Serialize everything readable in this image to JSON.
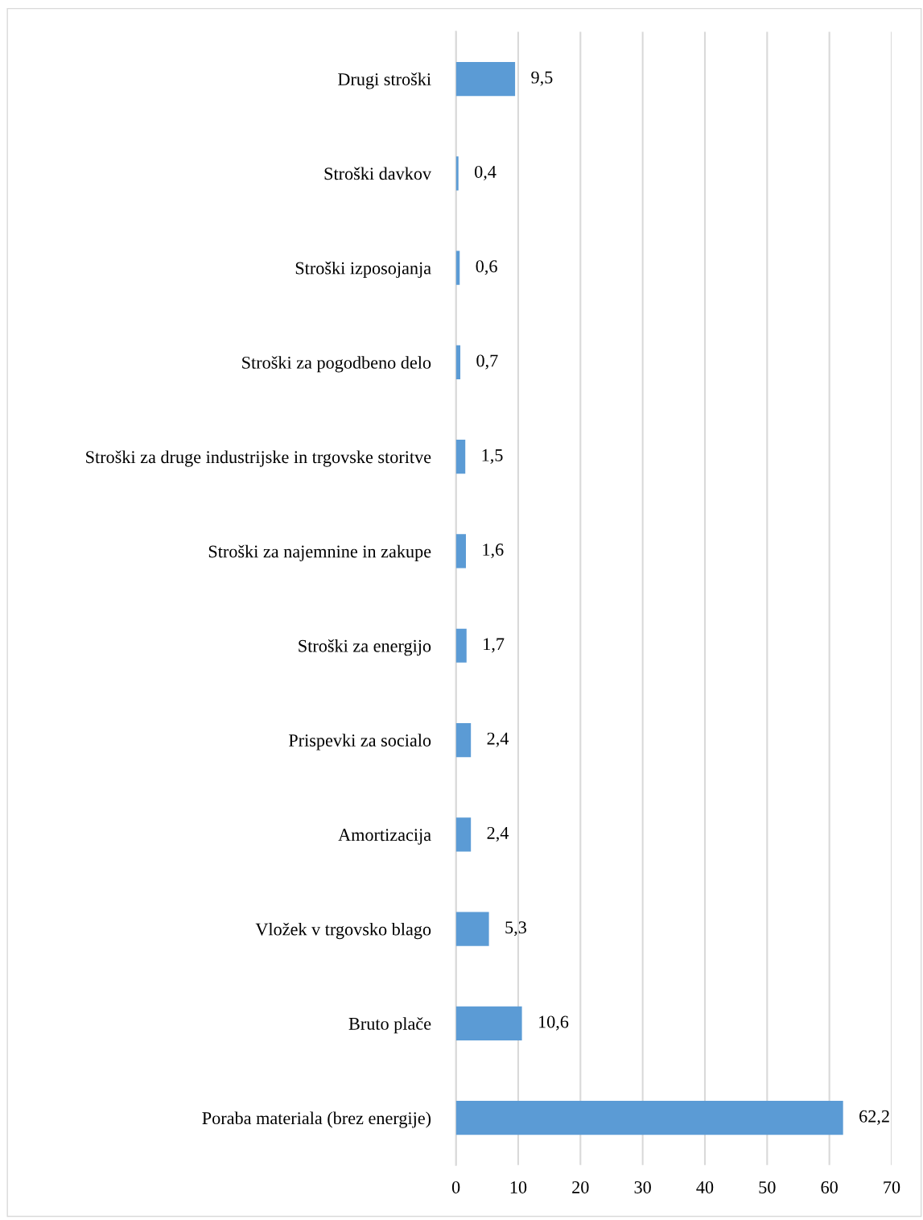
{
  "chart_data": {
    "type": "bar",
    "orientation": "horizontal",
    "categories": [
      "Drugi stroški",
      "Stroški davkov",
      "Stroški izposojanja",
      "Stroški za pogodbeno delo",
      "Stroški za druge industrijske in trgovske storitve",
      "Stroški za najemnine in zakupe",
      "Stroški za energijo",
      "Prispevki za socialo",
      "Amortizacija",
      "Vložek v trgovsko blago",
      "Bruto plače",
      "Poraba materiala (brez energije)"
    ],
    "values": [
      9.5,
      0.4,
      0.6,
      0.7,
      1.5,
      1.6,
      1.7,
      2.4,
      2.4,
      5.3,
      10.6,
      62.2
    ],
    "value_labels": [
      "9,5",
      "0,4",
      "0,6",
      "0,7",
      "1,5",
      "1,6",
      "1,7",
      "2,4",
      "2,4",
      "5,3",
      "10,6",
      "62,2"
    ],
    "color": "#5b9bd5",
    "xlim": [
      0,
      70
    ],
    "xticks": [
      0,
      10,
      20,
      30,
      40,
      50,
      60,
      70
    ],
    "grid": "x",
    "legend": false
  }
}
